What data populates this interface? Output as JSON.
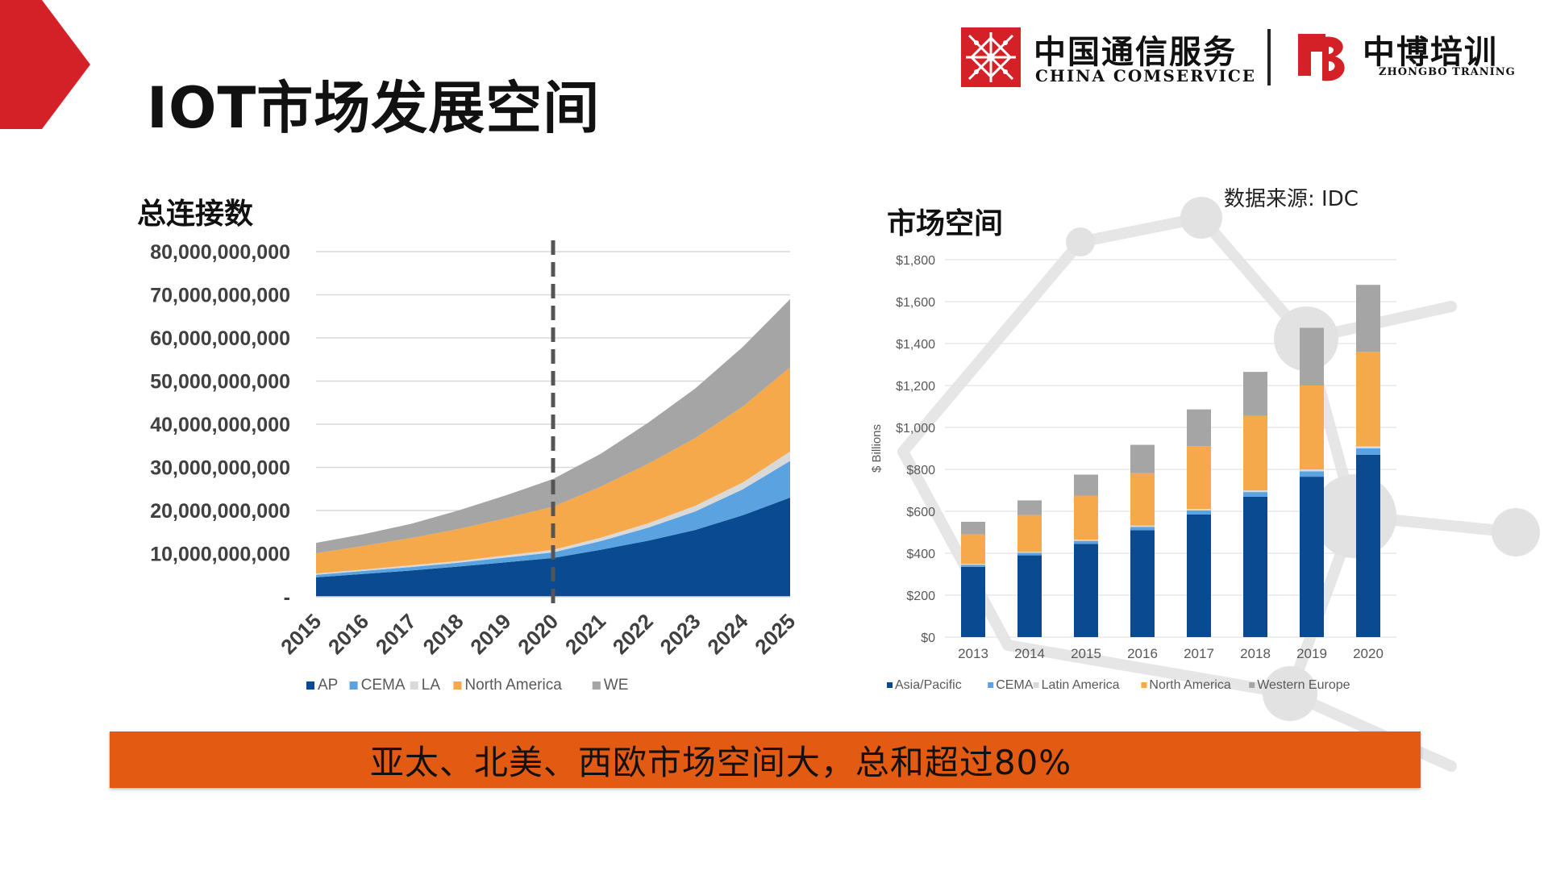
{
  "slide": {
    "title": "IOT市场发展空间",
    "source": "数据来源: IDC",
    "banner": "亚太、北美、西欧市场空间大，总和超过80%"
  },
  "logos": {
    "china_comservice": {
      "cn": "中国通信服务",
      "en": "CHINA COMSERVICE"
    },
    "zhongbo": {
      "cn": "中博培训",
      "en": "ZHONGBO TRANING"
    }
  },
  "colors": {
    "accent_red": "#d42027",
    "banner": "#e35a12",
    "series_ap": "#0a4a91",
    "series_cema": "#5ba3e0",
    "series_la": "#d9d9d9",
    "series_na": "#f5a94a",
    "series_we": "#a5a5a5"
  },
  "chart_data": [
    {
      "type": "area",
      "stacked": true,
      "title": "总连接数",
      "x": [
        "2015",
        "2016",
        "2017",
        "2018",
        "2019",
        "2020",
        "2021",
        "2022",
        "2023",
        "2024",
        "2025"
      ],
      "ylim": [
        0,
        80000000000
      ],
      "yticks": [
        0,
        10000000000,
        20000000000,
        30000000000,
        40000000000,
        50000000000,
        60000000000,
        70000000000,
        80000000000
      ],
      "ytick_labels": [
        "-",
        "10,000,000,000",
        "20,000,000,000",
        "30,000,000,000",
        "40,000,000,000",
        "50,000,000,000",
        "60,000,000,000",
        "70,000,000,000",
        "80,000,000,000"
      ],
      "gridlines": true,
      "divider_x": "2020",
      "legend_position": "bottom",
      "series": [
        {
          "name": "AP",
          "color": "#0a4a91",
          "values": [
            4500000000,
            5300000000,
            6100000000,
            7000000000,
            8000000000,
            9000000000,
            10900000000,
            13000000000,
            15500000000,
            18900000000,
            23000000000
          ]
        },
        {
          "name": "CEMA",
          "color": "#5ba3e0",
          "values": [
            600000000,
            700000000,
            800000000,
            900000000,
            1100000000,
            1300000000,
            2000000000,
            3000000000,
            4300000000,
            6000000000,
            8500000000
          ]
        },
        {
          "name": "LA",
          "color": "#d9d9d9",
          "values": [
            300000000,
            300000000,
            400000000,
            400000000,
            500000000,
            600000000,
            800000000,
            1000000000,
            1300000000,
            1600000000,
            2200000000
          ]
        },
        {
          "name": "North America",
          "color": "#f5a94a",
          "values": [
            4700000000,
            5500000000,
            6300000000,
            7400000000,
            8600000000,
            10000000000,
            11800000000,
            13800000000,
            15700000000,
            17600000000,
            19500000000
          ]
        },
        {
          "name": "WE",
          "color": "#a5a5a5",
          "values": [
            2400000000,
            2700000000,
            3300000000,
            4300000000,
            5300000000,
            6400000000,
            7600000000,
            9500000000,
            11500000000,
            13800000000,
            15800000000
          ]
        }
      ]
    },
    {
      "type": "bar",
      "stacked": true,
      "title": "市场空间",
      "ylabel": "$ Billions",
      "categories": [
        "2013",
        "2014",
        "2015",
        "2016",
        "2017",
        "2018",
        "2019",
        "2020"
      ],
      "ylim": [
        0,
        1800
      ],
      "yticks": [
        0,
        200,
        400,
        600,
        800,
        1000,
        1200,
        1400,
        1600,
        1800
      ],
      "ytick_labels": [
        "$0",
        "$200",
        "$400",
        "$600",
        "$800",
        "$1,000",
        "$1,200",
        "$1,400",
        "$1,600",
        "$1,800"
      ],
      "gridlines": true,
      "legend_position": "bottom",
      "series": [
        {
          "name": "Asia/Pacific",
          "color": "#0a4a91",
          "values": [
            335,
            390,
            445,
            510,
            585,
            670,
            765,
            870
          ]
        },
        {
          "name": "CEMA",
          "color": "#5ba3e0",
          "values": [
            10,
            12,
            14,
            16,
            19,
            22,
            26,
            30
          ]
        },
        {
          "name": "Latin America",
          "color": "#d9d9d9",
          "values": [
            5,
            5,
            6,
            6,
            7,
            8,
            9,
            10
          ]
        },
        {
          "name": "North America",
          "color": "#f5a94a",
          "values": [
            140,
            175,
            210,
            250,
            300,
            355,
            400,
            450
          ]
        },
        {
          "name": "Western Europe",
          "color": "#a5a5a5",
          "values": [
            60,
            70,
            100,
            135,
            175,
            210,
            275,
            320
          ]
        }
      ]
    }
  ]
}
